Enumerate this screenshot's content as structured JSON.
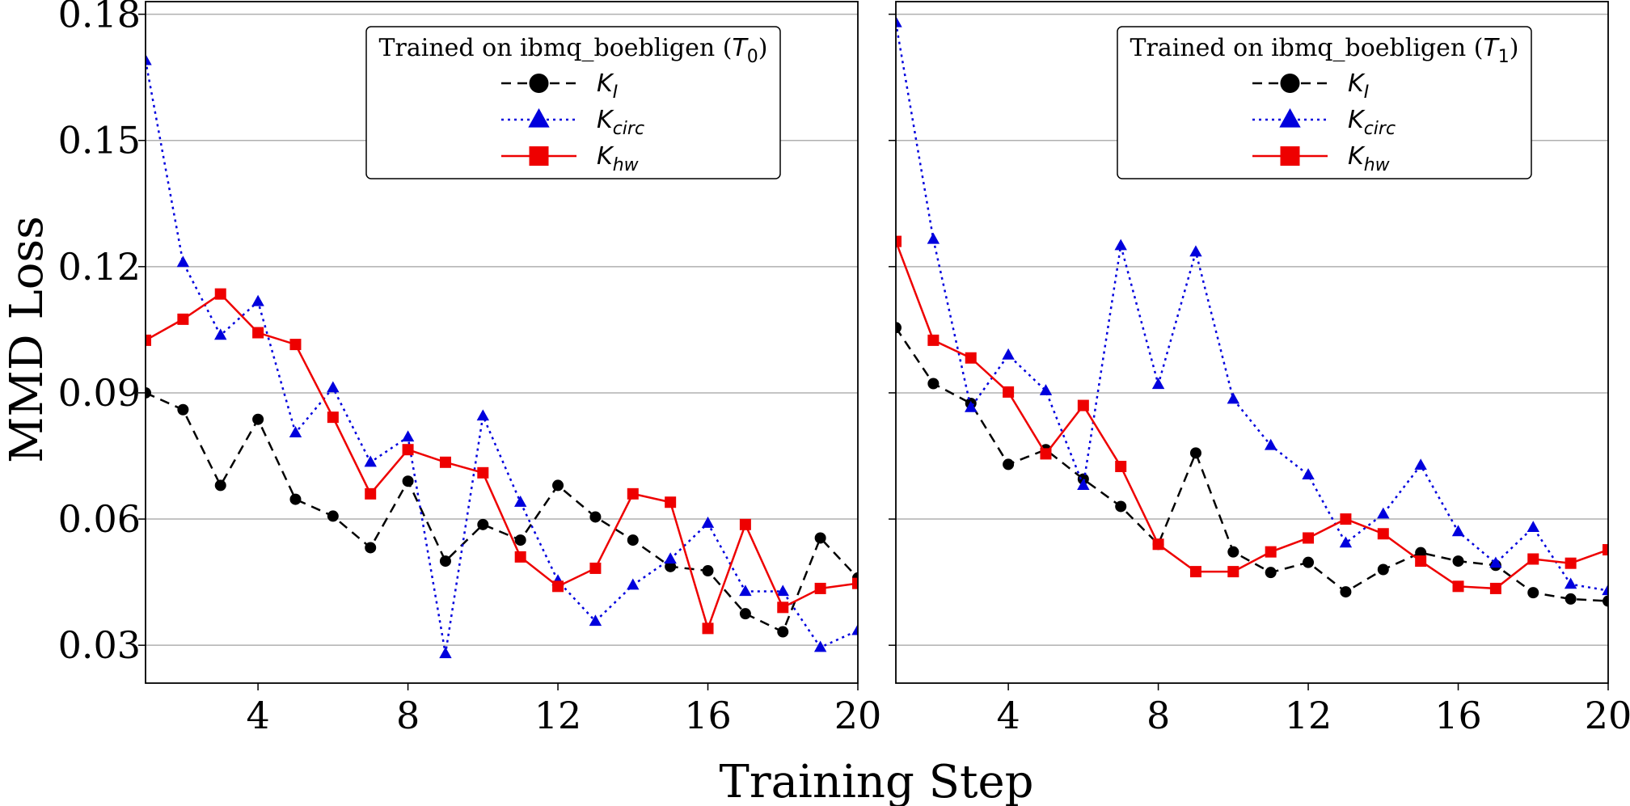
{
  "figure": {
    "ylabel": "MMD Loss",
    "xlabel": "Training Step"
  },
  "chart_data": [
    {
      "type": "line",
      "legend_title": "Trained on ibmq_boebligen (T0)",
      "legend_title_prefix": "Trained on ibmq_boebligen (",
      "legend_title_var": "T",
      "legend_title_sub": "0",
      "legend_title_suffix": ")",
      "legend_position": "top-right",
      "grid": "y",
      "xlim": [
        1,
        20
      ],
      "ylim": [
        0.021,
        0.183
      ],
      "xticks": [
        4,
        8,
        12,
        16,
        20
      ],
      "xtick_labels": [
        "4",
        "8",
        "12",
        "16",
        "20"
      ],
      "yticks": [
        0.03,
        0.06,
        0.09,
        0.12,
        0.15,
        0.18
      ],
      "ytick_labels": [
        "0.03",
        "0.06",
        "0.09",
        "0.12",
        "0.15",
        "0.18"
      ],
      "x": [
        1,
        2,
        3,
        4,
        5,
        6,
        7,
        8,
        9,
        10,
        11,
        12,
        13,
        14,
        15,
        16,
        17,
        18,
        19,
        20
      ],
      "series": [
        {
          "name": "K_I",
          "label_main": "K",
          "label_sub": "I",
          "color": "#000000",
          "dash": "12,8",
          "marker": "circle",
          "values": [
            0.09,
            0.086,
            0.068,
            0.0837,
            0.0647,
            0.0607,
            0.0532,
            0.069,
            0.05,
            0.0587,
            0.055,
            0.068,
            0.0605,
            0.055,
            0.0487,
            0.0477,
            0.0375,
            0.0332,
            0.0555,
            0.046
          ]
        },
        {
          "name": "K_circ",
          "label_main": "K",
          "label_sub": "circ",
          "color": "#0000dd",
          "dash": "3,5",
          "marker": "triangle",
          "values": [
            0.169,
            0.121,
            0.1037,
            0.1117,
            0.0805,
            0.0912,
            0.0735,
            0.0795,
            0.028,
            0.0845,
            0.064,
            0.0453,
            0.0357,
            0.0443,
            0.0505,
            0.059,
            0.0428,
            0.0428,
            0.0295,
            0.0335
          ]
        },
        {
          "name": "K_hw",
          "label_main": "K",
          "label_sub": "hw",
          "color": "#ee0000",
          "dash": "",
          "marker": "square",
          "values": [
            0.1025,
            0.1075,
            0.1135,
            0.1043,
            0.1015,
            0.0842,
            0.066,
            0.0765,
            0.0735,
            0.071,
            0.051,
            0.044,
            0.0483,
            0.066,
            0.064,
            0.034,
            0.0587,
            0.039,
            0.0435,
            0.0447
          ]
        }
      ]
    },
    {
      "type": "line",
      "legend_title": "Trained on ibmq_boebligen (T1)",
      "legend_title_prefix": "Trained on ibmq_boebligen (",
      "legend_title_var": "T",
      "legend_title_sub": "1",
      "legend_title_suffix": ")",
      "legend_position": "top-right",
      "grid": "y",
      "xlim": [
        1,
        20
      ],
      "ylim": [
        0.021,
        0.183
      ],
      "xticks": [
        4,
        8,
        12,
        16,
        20
      ],
      "xtick_labels": [
        "4",
        "8",
        "12",
        "16",
        "20"
      ],
      "x": [
        1,
        2,
        3,
        4,
        5,
        6,
        7,
        8,
        9,
        10,
        11,
        12,
        13,
        14,
        15,
        16,
        17,
        18,
        19,
        20
      ],
      "series": [
        {
          "name": "K_I",
          "label_main": "K",
          "label_sub": "I",
          "color": "#000000",
          "dash": "12,8",
          "marker": "circle",
          "values": [
            0.1055,
            0.0922,
            0.0875,
            0.073,
            0.0765,
            0.0695,
            0.063,
            0.054,
            0.0757,
            0.0522,
            0.0473,
            0.0497,
            0.0427,
            0.048,
            0.052,
            0.05,
            0.049,
            0.0425,
            0.041,
            0.0405
          ]
        },
        {
          "name": "K_circ",
          "label_main": "K",
          "label_sub": "circ",
          "color": "#0000dd",
          "dash": "3,5",
          "marker": "triangle",
          "values": [
            0.178,
            0.1265,
            0.0865,
            0.099,
            0.0905,
            0.068,
            0.125,
            0.092,
            0.1235,
            0.0885,
            0.0775,
            0.0705,
            0.0543,
            0.0612,
            0.0728,
            0.057,
            0.0495,
            0.058,
            0.0445,
            0.043
          ]
        },
        {
          "name": "K_hw",
          "label_main": "K",
          "label_sub": "hw",
          "color": "#ee0000",
          "dash": "",
          "marker": "square",
          "values": [
            0.126,
            0.1025,
            0.0983,
            0.0902,
            0.0755,
            0.087,
            0.0725,
            0.054,
            0.0475,
            0.0475,
            0.0522,
            0.0555,
            0.06,
            0.0565,
            0.05,
            0.044,
            0.0435,
            0.0505,
            0.0495,
            0.0527
          ]
        }
      ]
    }
  ]
}
